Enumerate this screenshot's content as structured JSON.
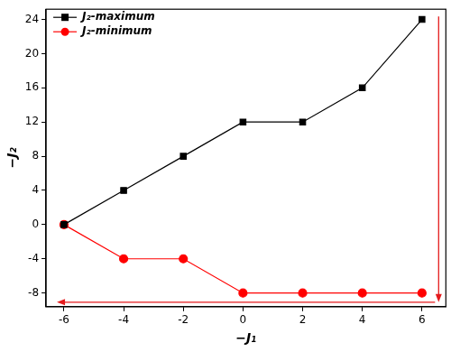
{
  "chart_data": {
    "type": "line",
    "x_label": "−J₁",
    "y_label": "−J₂",
    "x": [
      -6,
      -4,
      -2,
      0,
      2,
      4,
      6
    ],
    "series": [
      {
        "name": "J₂-maximum",
        "color": "#000000",
        "marker": "square",
        "values": [
          0,
          4,
          8,
          12,
          12,
          16,
          24
        ]
      },
      {
        "name": "J₂-minimum",
        "color": "#ff0000",
        "marker": "circle",
        "values": [
          0,
          -4,
          -4,
          -8,
          -8,
          -8,
          -8
        ]
      }
    ],
    "xlim": [
      -6.6,
      6.8
    ],
    "xticks": [
      -6,
      -4,
      -2,
      0,
      2,
      4,
      6
    ],
    "ylim": [
      -9.6,
      25.2
    ],
    "yticks": [
      -8,
      -4,
      0,
      4,
      8,
      12,
      16,
      20,
      24
    ],
    "legend": "upper left",
    "grid": false
  }
}
